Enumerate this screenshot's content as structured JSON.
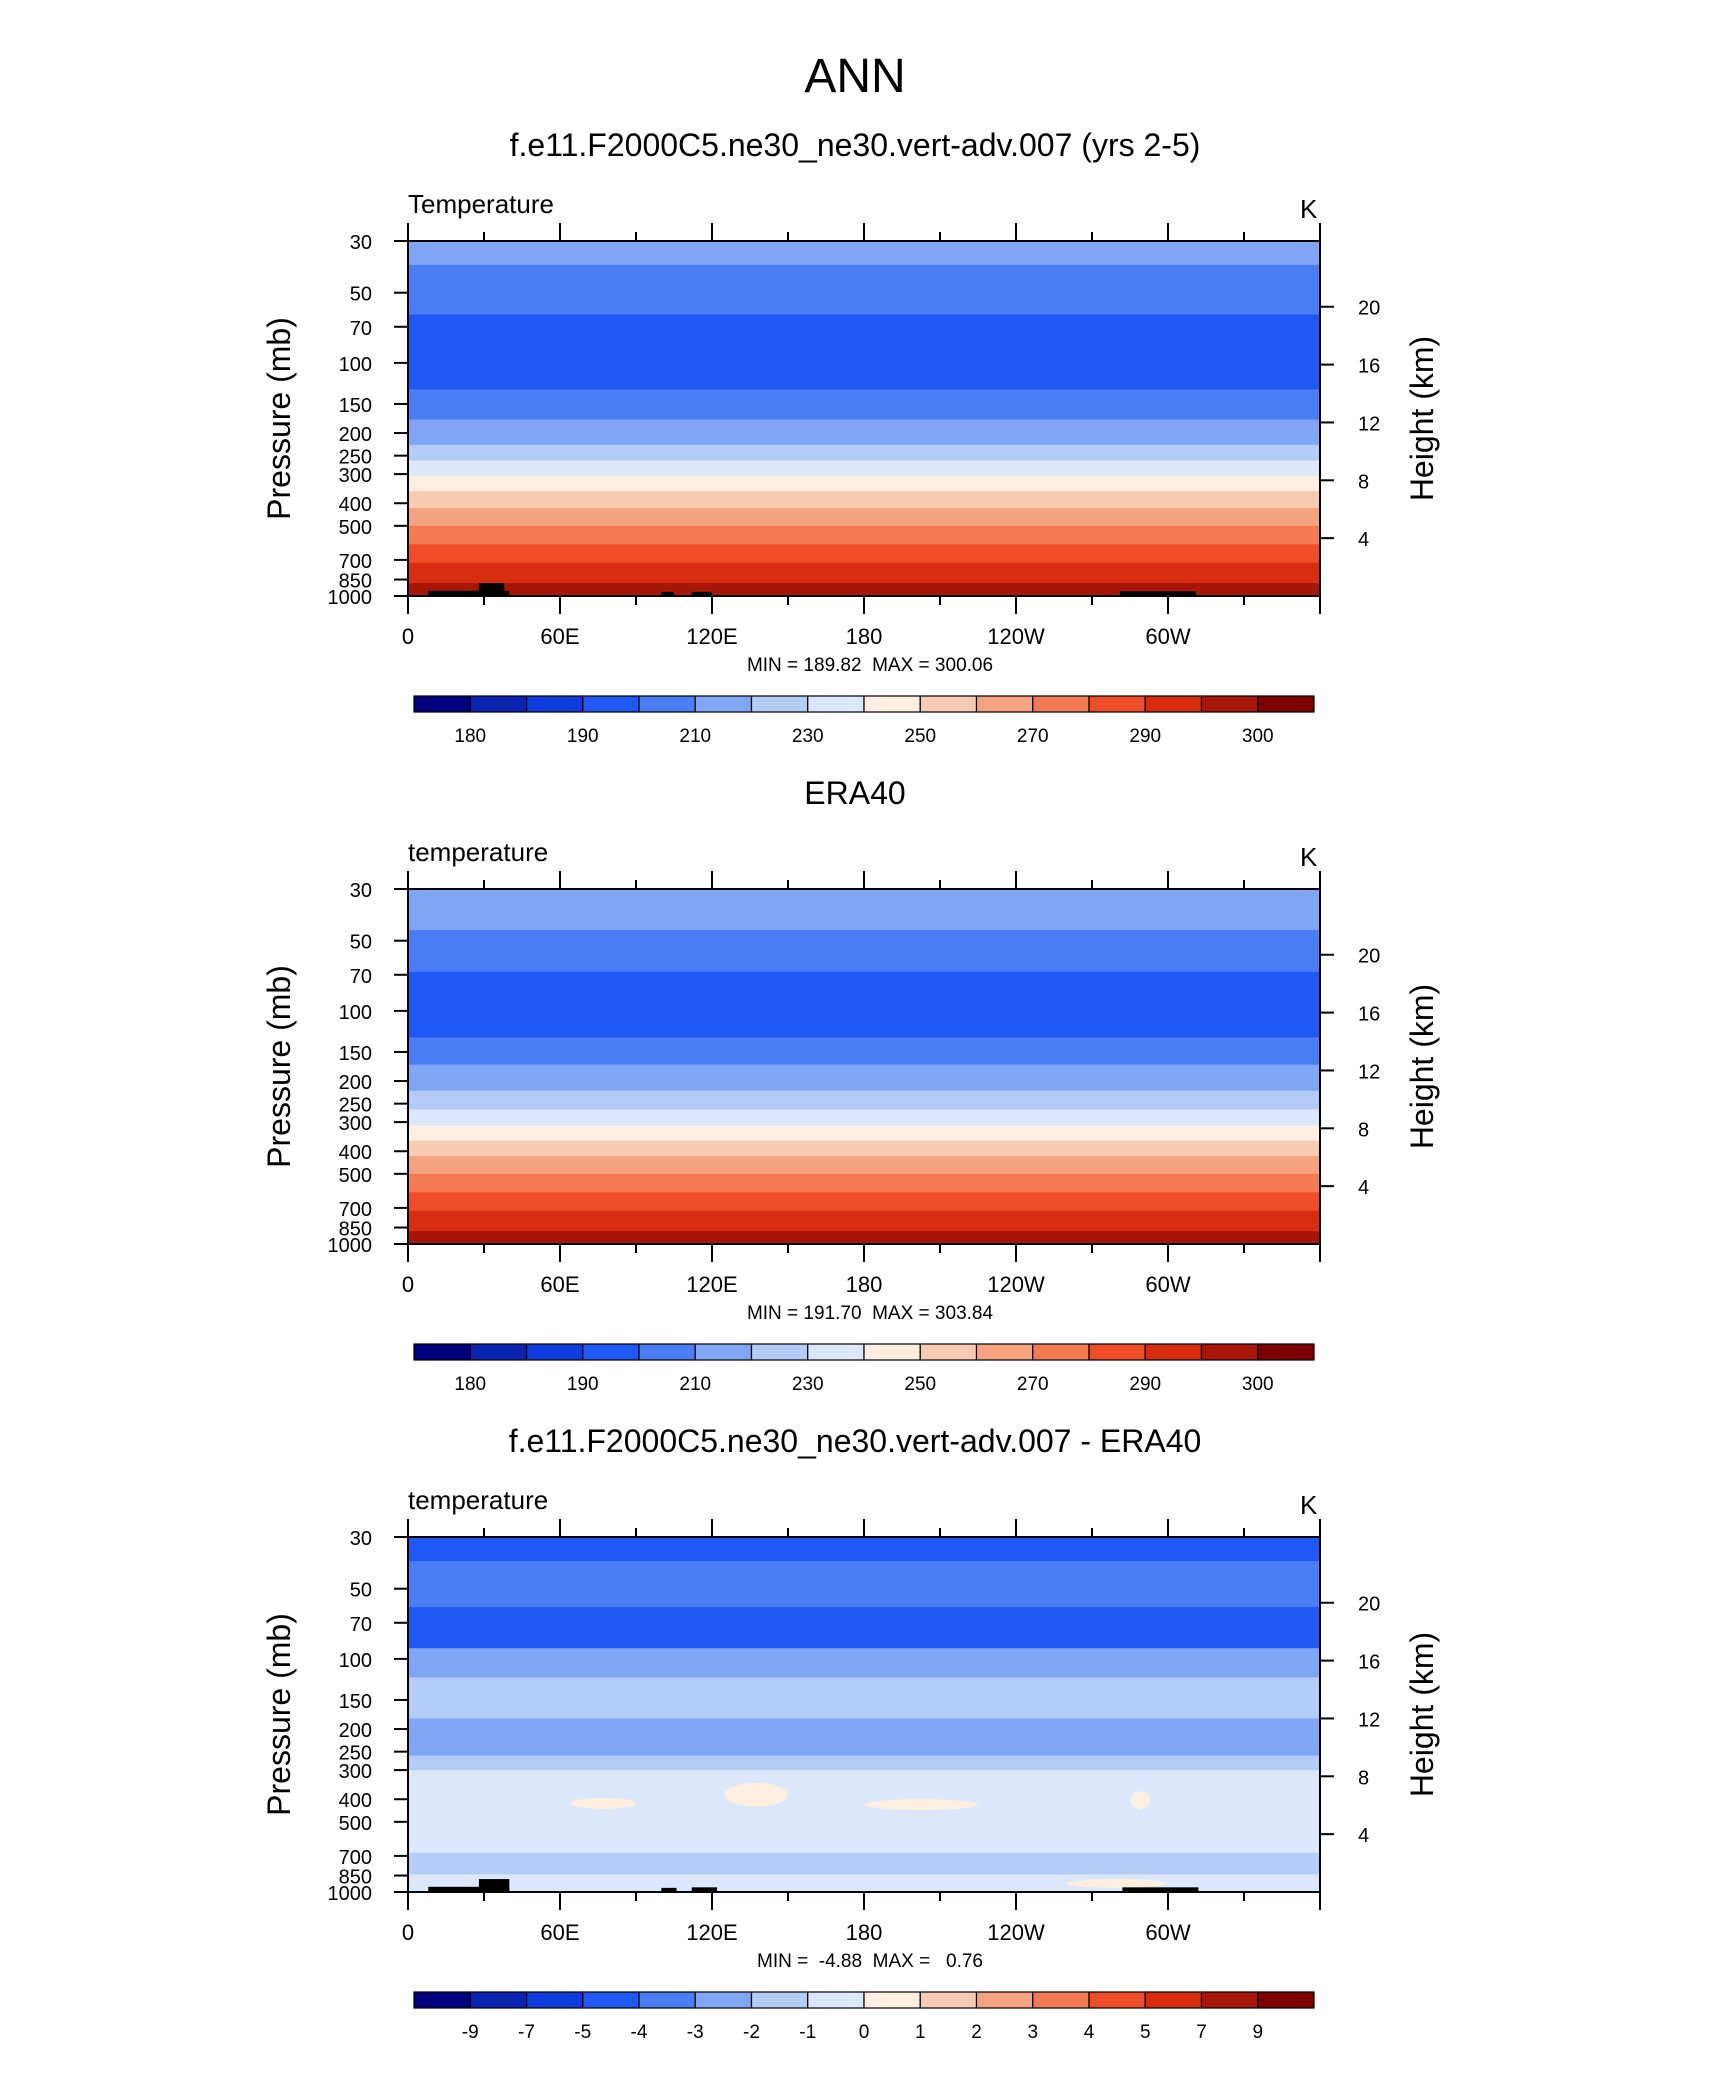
{
  "page": {
    "main_title": "ANN"
  },
  "colors": {
    "temp_levels": [
      "#00007f",
      "#0a24b0",
      "#0f3adc",
      "#1e58f5",
      "#4a7cf3",
      "#80a6f5",
      "#b3ccf7",
      "#dbe8fb",
      "#fdeee0",
      "#f9cbb3",
      "#f6a47f",
      "#f47a52",
      "#ef4d27",
      "#d82d10",
      "#a81608",
      "#7f0000"
    ],
    "diff_levels": [
      "#00007f",
      "#0a24b0",
      "#0f3adc",
      "#1e58f5",
      "#4a7cf3",
      "#80a6f5",
      "#b3ccf7",
      "#dbe8fb",
      "#fdeee0",
      "#f9cbb3",
      "#f6a47f",
      "#f47a52",
      "#ef4d27",
      "#d82d10",
      "#a81608",
      "#7f0000"
    ],
    "topography": "#000000"
  },
  "chart_data": [
    {
      "type": "heatmap",
      "title": "f.e11.F2000C5.ne30_ne30.vert-adv.007 (yrs 2-5)",
      "left_label": "Temperature",
      "units": "K",
      "ylabel": "Pressure (mb)",
      "y2label": "Height (km)",
      "x_ticks": [
        "0",
        "60E",
        "120E",
        "180",
        "120W",
        "60W"
      ],
      "x_range": [
        0,
        360
      ],
      "p_ticks": [
        "30",
        "50",
        "70",
        "100",
        "150",
        "200",
        "250",
        "300",
        "400",
        "500",
        "700",
        "850",
        "1000"
      ],
      "p_range": [
        30,
        1000
      ],
      "y_scale": "log",
      "height_ticks": [
        "20",
        "16",
        "12",
        "8",
        "4"
      ],
      "stats": "MIN = 189.82  MAX = 300.06",
      "colorbar_labels": [
        "180",
        "190",
        "210",
        "230",
        "250",
        "270",
        "290",
        "300"
      ],
      "bands": [
        {
          "p_top": 30,
          "p_bot": 38,
          "level": 5
        },
        {
          "p_top": 38,
          "p_bot": 62,
          "level": 4
        },
        {
          "p_top": 62,
          "p_bot": 130,
          "level": 3
        },
        {
          "p_top": 130,
          "p_bot": 175,
          "level": 4
        },
        {
          "p_top": 175,
          "p_bot": 225,
          "level": 5
        },
        {
          "p_top": 225,
          "p_bot": 262,
          "level": 6
        },
        {
          "p_top": 262,
          "p_bot": 305,
          "level": 7
        },
        {
          "p_top": 305,
          "p_bot": 355,
          "level": 8
        },
        {
          "p_top": 355,
          "p_bot": 420,
          "level": 9
        },
        {
          "p_top": 420,
          "p_bot": 500,
          "level": 10
        },
        {
          "p_top": 500,
          "p_bot": 600,
          "level": 11
        },
        {
          "p_top": 600,
          "p_bot": 720,
          "level": 12
        },
        {
          "p_top": 720,
          "p_bot": 880,
          "level": 13
        },
        {
          "p_top": 880,
          "p_bot": 1000,
          "level": 14
        }
      ],
      "topography": [
        {
          "lon0": 8,
          "lon1": 40,
          "p": 950
        },
        {
          "lon0": 28,
          "lon1": 38,
          "p": 880
        },
        {
          "lon0": 100,
          "lon1": 105,
          "p": 960
        },
        {
          "lon0": 112,
          "lon1": 120,
          "p": 960
        },
        {
          "lon0": 281,
          "lon1": 311,
          "p": 955
        }
      ]
    },
    {
      "type": "heatmap",
      "title": "ERA40",
      "left_label": "temperature",
      "units": "K",
      "ylabel": "Pressure (mb)",
      "y2label": "Height (km)",
      "x_ticks": [
        "0",
        "60E",
        "120E",
        "180",
        "120W",
        "60W"
      ],
      "x_range": [
        0,
        360
      ],
      "p_ticks": [
        "30",
        "50",
        "70",
        "100",
        "150",
        "200",
        "250",
        "300",
        "400",
        "500",
        "700",
        "850",
        "1000"
      ],
      "p_range": [
        30,
        1000
      ],
      "y_scale": "log",
      "height_ticks": [
        "20",
        "16",
        "12",
        "8",
        "4"
      ],
      "stats": "MIN = 191.70  MAX = 303.84",
      "colorbar_labels": [
        "180",
        "190",
        "210",
        "230",
        "250",
        "270",
        "290",
        "300"
      ],
      "bands": [
        {
          "p_top": 30,
          "p_bot": 45,
          "level": 5
        },
        {
          "p_top": 45,
          "p_bot": 68,
          "level": 4
        },
        {
          "p_top": 68,
          "p_bot": 130,
          "level": 3
        },
        {
          "p_top": 130,
          "p_bot": 170,
          "level": 4
        },
        {
          "p_top": 170,
          "p_bot": 220,
          "level": 5
        },
        {
          "p_top": 220,
          "p_bot": 265,
          "level": 6
        },
        {
          "p_top": 265,
          "p_bot": 310,
          "level": 7
        },
        {
          "p_top": 310,
          "p_bot": 360,
          "level": 8
        },
        {
          "p_top": 360,
          "p_bot": 420,
          "level": 9
        },
        {
          "p_top": 420,
          "p_bot": 500,
          "level": 10
        },
        {
          "p_top": 500,
          "p_bot": 600,
          "level": 11
        },
        {
          "p_top": 600,
          "p_bot": 720,
          "level": 12
        },
        {
          "p_top": 720,
          "p_bot": 880,
          "level": 13
        },
        {
          "p_top": 880,
          "p_bot": 1000,
          "level": 14
        }
      ],
      "topography": []
    },
    {
      "type": "heatmap",
      "title": "f.e11.F2000C5.ne30_ne30.vert-adv.007 - ERA40",
      "left_label": "temperature",
      "units": "K",
      "ylabel": "Pressure (mb)",
      "y2label": "Height (km)",
      "x_ticks": [
        "0",
        "60E",
        "120E",
        "180",
        "120W",
        "60W"
      ],
      "x_range": [
        0,
        360
      ],
      "p_ticks": [
        "30",
        "50",
        "70",
        "100",
        "150",
        "200",
        "250",
        "300",
        "400",
        "500",
        "700",
        "850",
        "1000"
      ],
      "p_range": [
        30,
        1000
      ],
      "y_scale": "log",
      "height_ticks": [
        "20",
        "16",
        "12",
        "8",
        "4"
      ],
      "stats": "MIN =  -4.88  MAX =   0.76",
      "colorbar_labels": [
        "-9",
        "-7",
        "-5",
        "-4",
        "-3",
        "-2",
        "-1",
        "0",
        "1",
        "2",
        "3",
        "4",
        "5",
        "7",
        "9"
      ],
      "bands": [
        {
          "p_top": 30,
          "p_bot": 38,
          "level": 3
        },
        {
          "p_top": 38,
          "p_bot": 60,
          "level": 4
        },
        {
          "p_top": 60,
          "p_bot": 90,
          "level": 3
        },
        {
          "p_top": 90,
          "p_bot": 120,
          "level": 5
        },
        {
          "p_top": 120,
          "p_bot": 180,
          "level": 6
        },
        {
          "p_top": 180,
          "p_bot": 260,
          "level": 5
        },
        {
          "p_top": 260,
          "p_bot": 300,
          "level": 6
        },
        {
          "p_top": 300,
          "p_bot": 680,
          "level": 7
        },
        {
          "p_top": 680,
          "p_bot": 840,
          "level": 6
        },
        {
          "p_top": 840,
          "p_bot": 1000,
          "level": 7
        }
      ],
      "patches": [
        {
          "lon0": 125,
          "lon1": 150,
          "p_top": 340,
          "p_bot": 430,
          "level": 8
        },
        {
          "lon0": 64,
          "lon1": 90,
          "p_top": 395,
          "p_bot": 440,
          "level": 8
        },
        {
          "lon0": 180,
          "lon1": 225,
          "p_top": 400,
          "p_bot": 445,
          "level": 8
        },
        {
          "lon0": 285,
          "lon1": 293,
          "p_top": 370,
          "p_bot": 440,
          "level": 8
        },
        {
          "lon0": 260,
          "lon1": 300,
          "p_top": 880,
          "p_bot": 960,
          "level": 8
        }
      ],
      "topography": [
        {
          "lon0": 8,
          "lon1": 40,
          "p": 950
        },
        {
          "lon0": 28,
          "lon1": 40,
          "p": 880
        },
        {
          "lon0": 100,
          "lon1": 106,
          "p": 960
        },
        {
          "lon0": 112,
          "lon1": 122,
          "p": 955
        },
        {
          "lon0": 282,
          "lon1": 312,
          "p": 955
        }
      ]
    }
  ]
}
